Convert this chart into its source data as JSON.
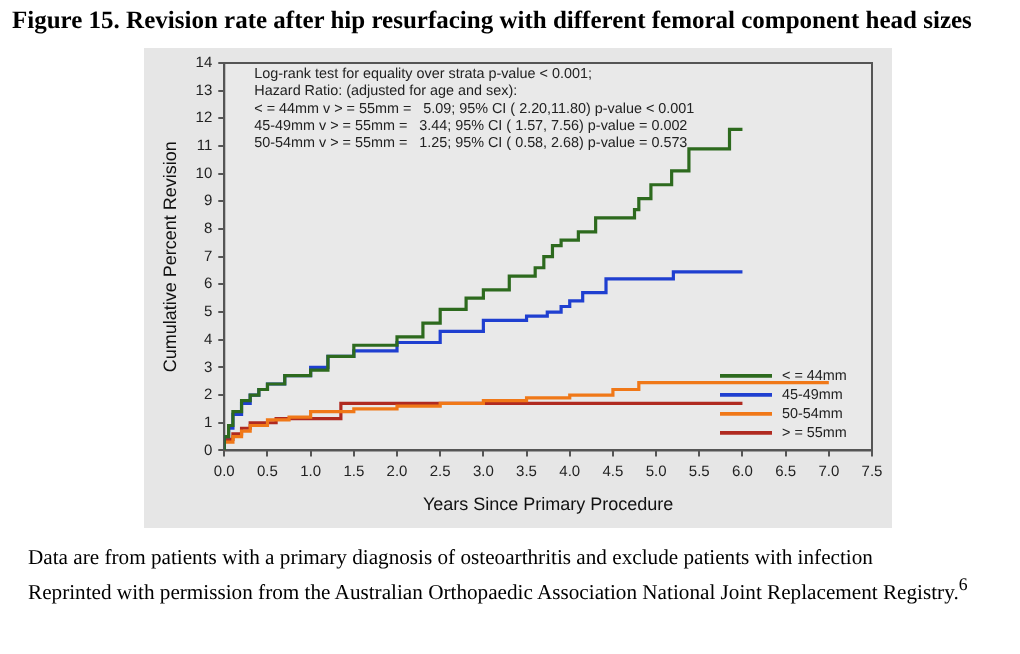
{
  "chart_data": {
    "type": "step",
    "title": "Figure 15. Revision rate after hip resurfacing with different femoral component head sizes",
    "xlabel": "Years Since Primary Procedure",
    "ylabel": "Cumulative Percent Revision",
    "annotations": [
      "Log-rank test for equality over strata p-value < 0.001;",
      "Hazard Ratio: (adjusted for age and sex):",
      "< = 44mm v > = 55mm =   5.09; 95% CI ( 2.20,11.80) p-value < 0.001",
      "45-49mm v > = 55mm =   3.44; 95% CI ( 1.57, 7.56) p-value = 0.002",
      "50-54mm v > = 55mm =   1.25; 95% CI ( 0.58, 2.68) p-value = 0.573",
      "Data are from patients with a primary diagnosis of osteoarthritis and exclude patients with infection",
      "Reprinted with permission from the Australian Orthopaedic Association National Joint Replacement Registry.$^{6}$"
    ],
    "xlim": [
      0,
      7.5
    ],
    "xticks": [
      {
        "value": 0,
        "label": "0.0"
      },
      {
        "value": 0.5,
        "label": "0.5"
      },
      {
        "value": 1,
        "label": "1.0"
      },
      {
        "value": 1.5,
        "label": "1.5"
      },
      {
        "value": 2,
        "label": "2.0"
      },
      {
        "value": 2.5,
        "label": "2.5"
      },
      {
        "value": 3,
        "label": "3.0"
      },
      {
        "value": 3.5,
        "label": "3.5"
      },
      {
        "value": 4,
        "label": "4.0"
      },
      {
        "value": 4.5,
        "label": "4.5"
      },
      {
        "value": 5,
        "label": "5.0"
      },
      {
        "value": 5.5,
        "label": "5.5"
      },
      {
        "value": 6,
        "label": "6.0"
      },
      {
        "value": 6.5,
        "label": "6.5"
      },
      {
        "value": 7,
        "label": "7.0"
      },
      {
        "value": 7.5,
        "label": "7.5"
      }
    ],
    "ylim": [
      0,
      14
    ],
    "yticks": [
      0,
      1,
      2,
      3,
      4,
      5,
      6,
      7,
      8,
      9,
      10,
      11,
      12,
      13,
      14
    ],
    "grid": false,
    "legend": "bottom right",
    "marker": "none",
    "line_style": "solid",
    "series": [
      {
        "name": "< = 44mm",
        "color": "#2d6a1e",
        "x": [
          0,
          0.05,
          0.1,
          0.2,
          0.3,
          0.4,
          0.5,
          0.7,
          1.0,
          1.2,
          1.5,
          2.0,
          2.3,
          2.5,
          2.8,
          3.0,
          3.3,
          3.6,
          3.7,
          3.8,
          3.9,
          4.1,
          4.3,
          4.75,
          4.8,
          4.94,
          5.18,
          5.38,
          5.85,
          5.95,
          6.0
        ],
        "values": [
          0,
          0.5,
          0.9,
          1.4,
          1.8,
          2.0,
          2.2,
          2.4,
          2.7,
          2.9,
          3.4,
          3.8,
          4.1,
          4.6,
          5.1,
          5.5,
          5.8,
          6.3,
          6.6,
          7.0,
          7.4,
          7.6,
          7.9,
          8.4,
          8.7,
          9.1,
          9.6,
          10.1,
          10.9,
          11.6,
          11.6
        ]
      },
      {
        "name": "45-49mm",
        "color": "#1f3fd0",
        "x": [
          0,
          0.05,
          0.1,
          0.2,
          0.3,
          0.4,
          0.5,
          0.7,
          1.0,
          1.2,
          1.5,
          2.0,
          2.5,
          3.0,
          3.5,
          3.74,
          3.9,
          4.0,
          4.15,
          4.42,
          5.2,
          5.32,
          6.0
        ],
        "values": [
          0,
          0.5,
          0.8,
          1.3,
          1.7,
          2.0,
          2.2,
          2.4,
          2.7,
          3.0,
          3.4,
          3.6,
          3.9,
          4.3,
          4.7,
          4.85,
          5.0,
          5.2,
          5.4,
          5.7,
          6.2,
          6.45,
          6.45
        ]
      },
      {
        "name": "50-54mm",
        "color": "#f07818",
        "x": [
          0,
          0.1,
          0.2,
          0.3,
          0.5,
          0.75,
          1.0,
          1.5,
          2.0,
          2.5,
          3.0,
          3.5,
          4.0,
          4.5,
          4.8,
          5.55,
          7.0
        ],
        "values": [
          0,
          0.3,
          0.5,
          0.7,
          0.9,
          1.1,
          1.2,
          1.4,
          1.5,
          1.6,
          1.7,
          1.8,
          1.9,
          2.0,
          2.2,
          2.45,
          2.45
        ]
      },
      {
        "name": "> = 55mm",
        "color": "#b02a20",
        "x": [
          0,
          0.1,
          0.2,
          0.3,
          0.6,
          1.35,
          3.4,
          6.0
        ],
        "values": [
          0,
          0.4,
          0.6,
          0.8,
          1.0,
          1.15,
          1.7,
          1.7
        ]
      }
    ]
  }
}
